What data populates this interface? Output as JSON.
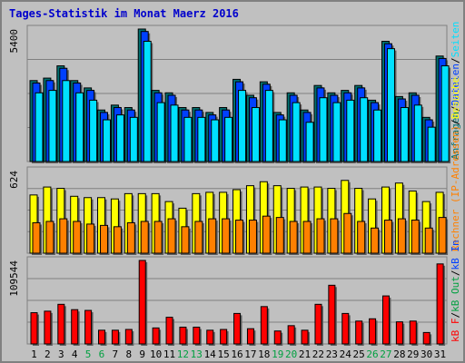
{
  "title": "Tages-Statistik im Monat Maerz 2016",
  "colors": {
    "title": "#0000cc",
    "panel_bg": "#c0c0c0",
    "hits": "#007070",
    "files": "#0040ff",
    "pages": "#00e0ff",
    "visits": "#ffff00",
    "sites": "#ff8000",
    "kbytes": "#ff0000",
    "weekend": "#00a040",
    "axis_text": "#000000",
    "legend_sep": "#000000"
  },
  "chart_data": [
    {
      "type": "bar",
      "panel": "top",
      "y_tick_label": "5400",
      "ylim": [
        0,
        5400
      ],
      "categories": [
        "1",
        "2",
        "3",
        "4",
        "5",
        "6",
        "7",
        "8",
        "9",
        "10",
        "11",
        "12",
        "13",
        "14",
        "15",
        "16",
        "17",
        "18",
        "19",
        "20",
        "21",
        "22",
        "23",
        "24",
        "25",
        "26",
        "27",
        "28",
        "29",
        "30",
        "31"
      ],
      "series": [
        {
          "name": "Anfragen",
          "color_key": "hits",
          "values": [
            3300,
            3400,
            3900,
            3300,
            3000,
            2100,
            2300,
            2200,
            5400,
            2900,
            2800,
            2200,
            2200,
            2000,
            2200,
            3350,
            2700,
            3250,
            2000,
            2800,
            2100,
            3100,
            2800,
            2900,
            3100,
            2500,
            4900,
            2650,
            2800,
            1800,
            4300
          ]
        },
        {
          "name": "Dateien",
          "color_key": "files",
          "values": [
            3200,
            3300,
            3800,
            3200,
            2900,
            2000,
            2200,
            2100,
            5300,
            2800,
            2700,
            2100,
            2100,
            1900,
            2100,
            3250,
            2600,
            3150,
            1900,
            2700,
            2000,
            3000,
            2700,
            2800,
            3000,
            2400,
            4800,
            2550,
            2700,
            1700,
            4200
          ]
        },
        {
          "name": "Seiten",
          "color_key": "pages",
          "values": [
            2800,
            2900,
            3300,
            2800,
            2500,
            1700,
            1900,
            1800,
            4900,
            2400,
            2300,
            1800,
            1800,
            1700,
            1800,
            2900,
            2200,
            2900,
            1700,
            2400,
            1600,
            2600,
            2400,
            2500,
            2600,
            2100,
            4600,
            2200,
            2300,
            1400,
            3900
          ]
        }
      ]
    },
    {
      "type": "bar",
      "panel": "middle",
      "y_tick_label": "624",
      "ylim": [
        0,
        624
      ],
      "categories": [
        "1",
        "2",
        "3",
        "4",
        "5",
        "6",
        "7",
        "8",
        "9",
        "10",
        "11",
        "12",
        "13",
        "14",
        "15",
        "16",
        "17",
        "18",
        "19",
        "20",
        "21",
        "22",
        "23",
        "24",
        "25",
        "26",
        "27",
        "28",
        "29",
        "30",
        "31"
      ],
      "series": [
        {
          "name": "Besuche",
          "color_key": "visits",
          "values": [
            440,
            500,
            490,
            430,
            420,
            420,
            410,
            450,
            450,
            450,
            390,
            340,
            450,
            460,
            460,
            480,
            510,
            540,
            510,
            490,
            500,
            500,
            490,
            550,
            490,
            410,
            500,
            530,
            470,
            390,
            460
          ]
        },
        {
          "name": "Rechner (IP-Adressen)",
          "color_key": "sites",
          "values": [
            230,
            240,
            260,
            240,
            220,
            210,
            200,
            230,
            240,
            240,
            260,
            200,
            240,
            260,
            260,
            250,
            250,
            280,
            270,
            240,
            240,
            260,
            260,
            300,
            240,
            190,
            250,
            260,
            250,
            190,
            270
          ]
        }
      ]
    },
    {
      "type": "bar",
      "panel": "bottom",
      "y_tick_label": "109544",
      "ylim": [
        0,
        109544
      ],
      "categories": [
        "1",
        "2",
        "3",
        "4",
        "5",
        "6",
        "7",
        "8",
        "9",
        "10",
        "11",
        "12",
        "13",
        "14",
        "15",
        "16",
        "17",
        "18",
        "19",
        "20",
        "21",
        "22",
        "23",
        "24",
        "25",
        "26",
        "27",
        "28",
        "29",
        "30",
        "31"
      ],
      "series": [
        {
          "name": "kB F",
          "color_key": "kbytes",
          "values": [
            41000,
            43000,
            52000,
            45000,
            44000,
            18000,
            18000,
            19000,
            109544,
            21000,
            35000,
            22000,
            22000,
            18000,
            19000,
            40000,
            20000,
            49000,
            17000,
            24000,
            18000,
            52000,
            77000,
            40000,
            30000,
            33000,
            63000,
            29000,
            30000,
            15000,
            105000
          ]
        }
      ]
    }
  ],
  "x_labels": [
    "1",
    "2",
    "3",
    "4",
    "5",
    "6",
    "7",
    "8",
    "9",
    "10",
    "11",
    "12",
    "13",
    "14",
    "15",
    "16",
    "17",
    "18",
    "19",
    "20",
    "21",
    "22",
    "23",
    "24",
    "25",
    "26",
    "27",
    "28",
    "29",
    "30",
    "31"
  ],
  "weekend_days": [
    5,
    6,
    12,
    13,
    19,
    20,
    26,
    27
  ],
  "legend_top": [
    {
      "text": "Anfragen",
      "color_key": "hits"
    },
    {
      "text": "/",
      "color_key": "legend_sep"
    },
    {
      "text": "Dateien",
      "color_key": "files"
    },
    {
      "text": "/",
      "color_key": "legend_sep"
    },
    {
      "text": "Seiten",
      "color_key": "pages"
    }
  ],
  "legend_middle": [
    {
      "text": "Rechner (IP-Adressen)",
      "color_key": "sites"
    },
    {
      "text": "/",
      "color_key": "legend_sep"
    },
    {
      "text": "Besuche",
      "color_key": "visits"
    }
  ],
  "legend_bottom": [
    {
      "text": "kB F",
      "color_key": "kbytes"
    },
    {
      "text": "/",
      "color_key": "legend_sep"
    },
    {
      "text": "kB Out",
      "color_key": "weekend"
    },
    {
      "text": "/",
      "color_key": "legend_sep"
    },
    {
      "text": "kB In",
      "color_key": "files"
    }
  ]
}
